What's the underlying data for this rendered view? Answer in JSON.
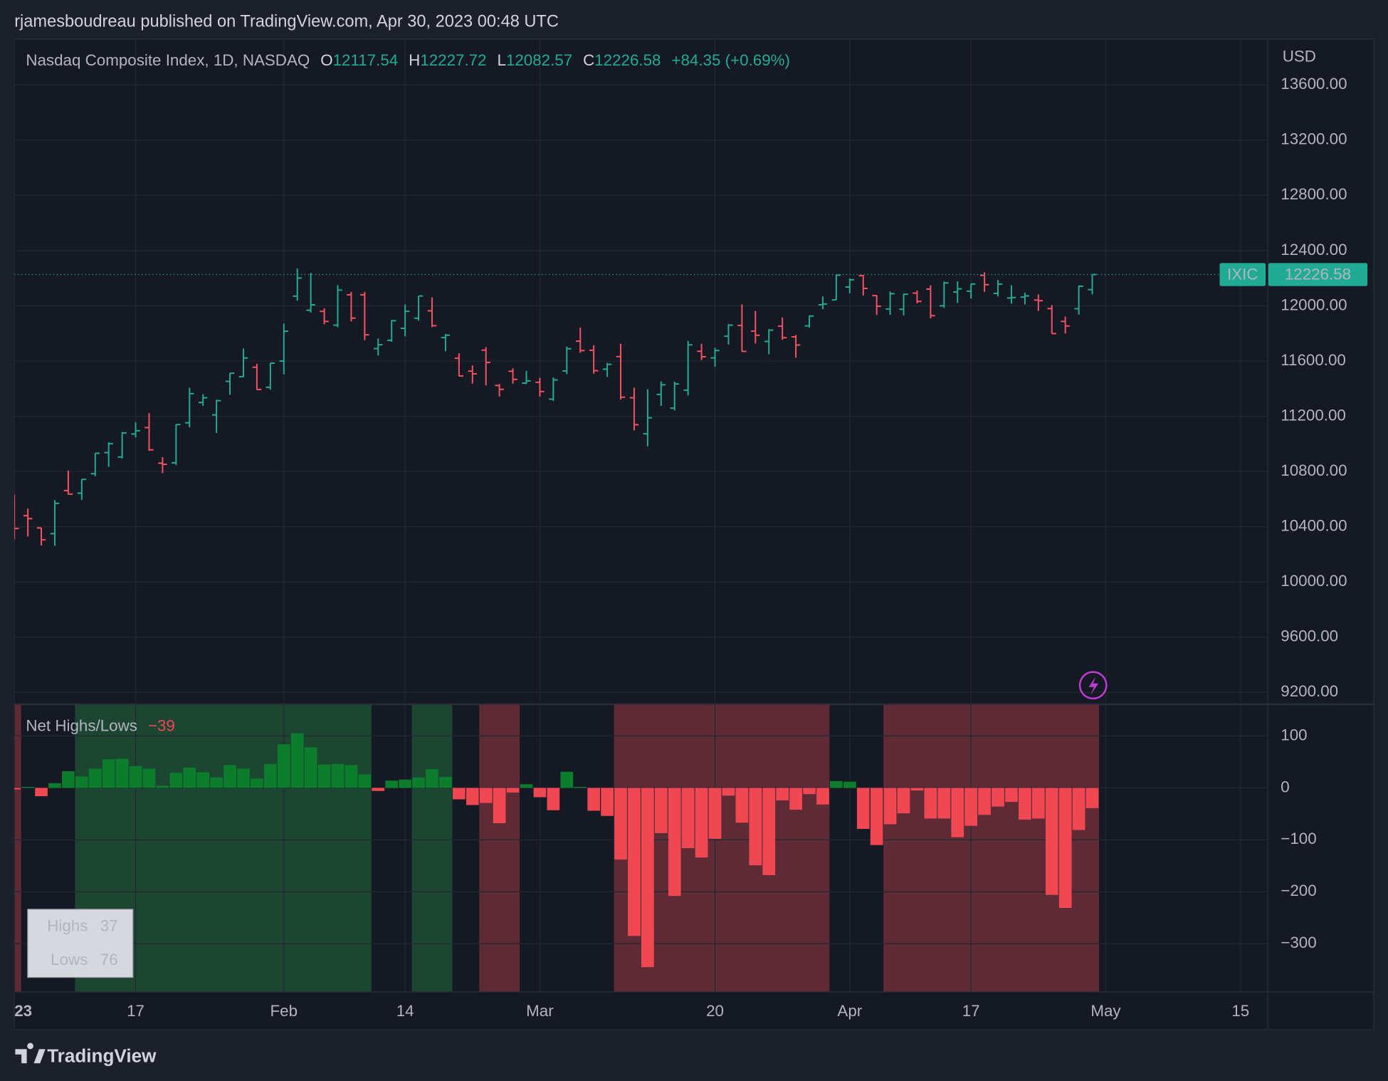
{
  "header": {
    "publish_line": "rjamesboudreau published on TradingView.com, Apr 30, 2023 00:48 UTC"
  },
  "footer": {
    "brand": "TradingView"
  },
  "chart_data": [
    {
      "type": "ohlc",
      "title": "Nasdaq Composite Index, 1D, NASDAQ",
      "symbol": "IXIC",
      "currency": "USD",
      "ohlc_labels": [
        "O",
        "H",
        "L",
        "C"
      ],
      "change_label": "+84.35 (+0.69%)",
      "up_color": "#22ab94",
      "down_color": "#f7525f",
      "grid": true,
      "x": [
        "2023-01-03",
        "2023-01-04",
        "2023-01-05",
        "2023-01-06",
        "2023-01-09",
        "2023-01-10",
        "2023-01-11",
        "2023-01-12",
        "2023-01-13",
        "2023-01-17",
        "2023-01-18",
        "2023-01-19",
        "2023-01-20",
        "2023-01-23",
        "2023-01-24",
        "2023-01-25",
        "2023-01-26",
        "2023-01-27",
        "2023-01-30",
        "2023-01-31",
        "2023-02-01",
        "2023-02-02",
        "2023-02-03",
        "2023-02-06",
        "2023-02-07",
        "2023-02-08",
        "2023-02-09",
        "2023-02-10",
        "2023-02-13",
        "2023-02-14",
        "2023-02-15",
        "2023-02-16",
        "2023-02-17",
        "2023-02-21",
        "2023-02-22",
        "2023-02-23",
        "2023-02-24",
        "2023-02-27",
        "2023-02-28",
        "2023-03-01",
        "2023-03-02",
        "2023-03-03",
        "2023-03-06",
        "2023-03-07",
        "2023-03-08",
        "2023-03-09",
        "2023-03-10",
        "2023-03-13",
        "2023-03-14",
        "2023-03-15",
        "2023-03-16",
        "2023-03-17",
        "2023-03-20",
        "2023-03-21",
        "2023-03-22",
        "2023-03-23",
        "2023-03-24",
        "2023-03-27",
        "2023-03-28",
        "2023-03-29",
        "2023-03-30",
        "2023-03-31",
        "2023-04-03",
        "2023-04-04",
        "2023-04-05",
        "2023-04-06",
        "2023-04-10",
        "2023-04-11",
        "2023-04-12",
        "2023-04-13",
        "2023-04-14",
        "2023-04-17",
        "2023-04-18",
        "2023-04-19",
        "2023-04-20",
        "2023-04-21",
        "2023-04-24",
        "2023-04-25",
        "2023-04-26",
        "2023-04-27",
        "2023-04-28"
      ],
      "open": [
        10562,
        10480,
        10391,
        10350,
        10662,
        10643,
        10784,
        10937,
        10905,
        11072,
        11118,
        10860,
        10863,
        11153,
        11300,
        11210,
        11453,
        11487,
        11555,
        11410,
        11600,
        12070,
        11968,
        11960,
        11860,
        12080,
        12080,
        11690,
        11750,
        11837,
        11910,
        11964,
        11770,
        11620,
        11527,
        11679,
        11423,
        11526,
        11440,
        11446,
        11324,
        11528,
        11744,
        11678,
        11541,
        11632,
        11334,
        11073,
        11358,
        11259,
        11389,
        11671,
        11623,
        11780,
        11858,
        11817,
        11742,
        11853,
        11775,
        11855,
        12008,
        12043,
        12136,
        12218,
        12074,
        11977,
        11975,
        12092,
        12121,
        12000,
        12100,
        12106,
        12221,
        12090,
        12057,
        12063,
        12042,
        11980,
        11887,
        11979,
        12117.54
      ],
      "high": [
        10633,
        10531,
        10393,
        10593,
        10807,
        10743,
        10932,
        11012,
        11086,
        11156,
        11223,
        10904,
        11141,
        11407,
        11360,
        11320,
        11513,
        11691,
        11580,
        11585,
        11872,
        12270,
        12238,
        11982,
        12150,
        12100,
        12101,
        11763,
        11897,
        12009,
        12071,
        12061,
        11796,
        11656,
        11568,
        11700,
        11433,
        11547,
        11529,
        11478,
        11481,
        11705,
        11843,
        11715,
        11586,
        11725,
        11407,
        11396,
        11453,
        11451,
        11746,
        11725,
        11696,
        11867,
        12010,
        11963,
        11832,
        11916,
        11789,
        11930,
        12068,
        12227,
        12199,
        12224,
        12076,
        12103,
        12087,
        12110,
        12149,
        12175,
        12177,
        12159,
        12243,
        12188,
        12149,
        12095,
        12083,
        12005,
        11922,
        12147,
        12227.72
      ],
      "low": [
        10309,
        10330,
        10264,
        10262,
        10633,
        10595,
        10766,
        10834,
        10894,
        11047,
        10950,
        10788,
        10847,
        11120,
        11275,
        11080,
        11355,
        11484,
        11390,
        11393,
        11504,
        12037,
        11952,
        11867,
        11845,
        11887,
        11751,
        11640,
        11739,
        11779,
        11893,
        11846,
        11671,
        11489,
        11437,
        11424,
        11343,
        11436,
        11433,
        11343,
        11312,
        11506,
        11660,
        11508,
        11485,
        11321,
        11098,
        10983,
        11275,
        11242,
        11351,
        11606,
        11559,
        11720,
        11669,
        11727,
        11650,
        11755,
        11624,
        11842,
        11975,
        12043,
        12091,
        12075,
        11934,
        11935,
        11930,
        12019,
        11910,
        11985,
        12021,
        12052,
        12101,
        12068,
        12015,
        12010,
        11963,
        11798,
        11799,
        11937,
        12082.57
      ],
      "close": [
        10387,
        10459,
        10305,
        10569,
        10636,
        10743,
        10932,
        11001,
        11079,
        11095,
        10957,
        10852,
        11140,
        11364,
        11334,
        11313,
        11512,
        11622,
        11394,
        11585,
        11816,
        12201,
        12007,
        11887,
        12114,
        11911,
        11790,
        11718,
        11892,
        11960,
        12071,
        11856,
        11787,
        11492,
        11507,
        11590,
        11395,
        11467,
        11456,
        11379,
        11463,
        11689,
        11676,
        11530,
        11576,
        11338,
        11139,
        11189,
        11428,
        11434,
        11717,
        11631,
        11676,
        11860,
        11670,
        11787,
        11824,
        11769,
        11716,
        11926,
        12013,
        12222,
        12189,
        12126,
        11997,
        12088,
        12084,
        12032,
        11929,
        12166,
        12123,
        12158,
        12153,
        12157,
        12060,
        12072,
        12037,
        11799,
        11854,
        12142,
        12226.58
      ],
      "ylim": [
        9117,
        13933
      ],
      "yticks": [
        {
          "value": 9200,
          "label": "9200.00"
        },
        {
          "value": 9600,
          "label": "9600.00"
        },
        {
          "value": 10000,
          "label": "10000.00"
        },
        {
          "value": 10400,
          "label": "10400.00"
        },
        {
          "value": 10800,
          "label": "10800.00"
        },
        {
          "value": 11200,
          "label": "11200.00"
        },
        {
          "value": 11600,
          "label": "11600.00"
        },
        {
          "value": 12000,
          "label": "12000.00"
        },
        {
          "value": 12400,
          "label": "12400.00"
        },
        {
          "value": 12800,
          "label": "12800.00"
        },
        {
          "value": 13200,
          "label": "13200.00"
        },
        {
          "value": 13600,
          "label": "13600.00"
        }
      ],
      "xlim": [
        "2023-01-03",
        "2023-05-17"
      ],
      "xticks": [
        {
          "value": "2023-01-03",
          "label": "23"
        },
        {
          "value": "2023-01-17",
          "label": "17"
        },
        {
          "value": "2023-02-01",
          "label": "Feb"
        },
        {
          "value": "2023-02-14",
          "label": "14"
        },
        {
          "value": "2023-03-01",
          "label": "Mar"
        },
        {
          "value": "2023-03-20",
          "label": "20"
        },
        {
          "value": "2023-04-03",
          "label": "Apr"
        },
        {
          "value": "2023-04-17",
          "label": "17"
        },
        {
          "value": "2023-05-01",
          "label": "May"
        },
        {
          "value": "2023-05-15",
          "label": "15"
        }
      ]
    },
    {
      "type": "bar",
      "title": "Net Highs/Lows",
      "current_label": "−39",
      "positive_color": "#0b7d2c",
      "negative_color": "#ef4853",
      "grid": true,
      "values": [
        -3,
        2,
        -16,
        9,
        32,
        22,
        37,
        55,
        56,
        42,
        37,
        4,
        29,
        39,
        30,
        20,
        44,
        37,
        18,
        46,
        84,
        105,
        78,
        45,
        46,
        44,
        26,
        -6,
        14,
        16,
        20,
        36,
        21,
        -22,
        -33,
        -29,
        -68,
        -9,
        7,
        -18,
        -43,
        31,
        2,
        -44,
        -54,
        -138,
        -285,
        -345,
        -87,
        -208,
        -116,
        -134,
        -98,
        -15,
        -67,
        -149,
        -168,
        -24,
        -42,
        -12,
        -32,
        13,
        12,
        -79,
        -110,
        -70,
        -49,
        -5,
        -59,
        -59,
        -95,
        -73,
        -52,
        -36,
        -27,
        -61,
        -59,
        -206,
        -231,
        -81,
        -39
      ],
      "zones": [
        {
          "from": "2023-01-03",
          "to": "2023-01-03",
          "color": "#5e2a36"
        },
        {
          "from": "2023-01-10",
          "to": "2023-02-09",
          "color": "#1c4632"
        },
        {
          "from": "2023-02-15",
          "to": "2023-02-17",
          "color": "#1c4632"
        },
        {
          "from": "2023-02-23",
          "to": "2023-02-27",
          "color": "#5e2a36"
        },
        {
          "from": "2023-03-09",
          "to": "2023-03-30",
          "color": "#5e2a36"
        },
        {
          "from": "2023-04-06",
          "to": "2023-04-28",
          "color": "#5e2a36"
        }
      ],
      "ylim": [
        -392,
        160
      ],
      "yticks": [
        100,
        0,
        {
          "value": -100,
          "label": "−100"
        },
        {
          "value": -200,
          "label": "−200"
        },
        {
          "value": -300,
          "label": "−300"
        }
      ],
      "stats": [
        {
          "label": "Highs",
          "value": 37
        },
        {
          "label": "Lows",
          "value": 76
        }
      ]
    }
  ]
}
